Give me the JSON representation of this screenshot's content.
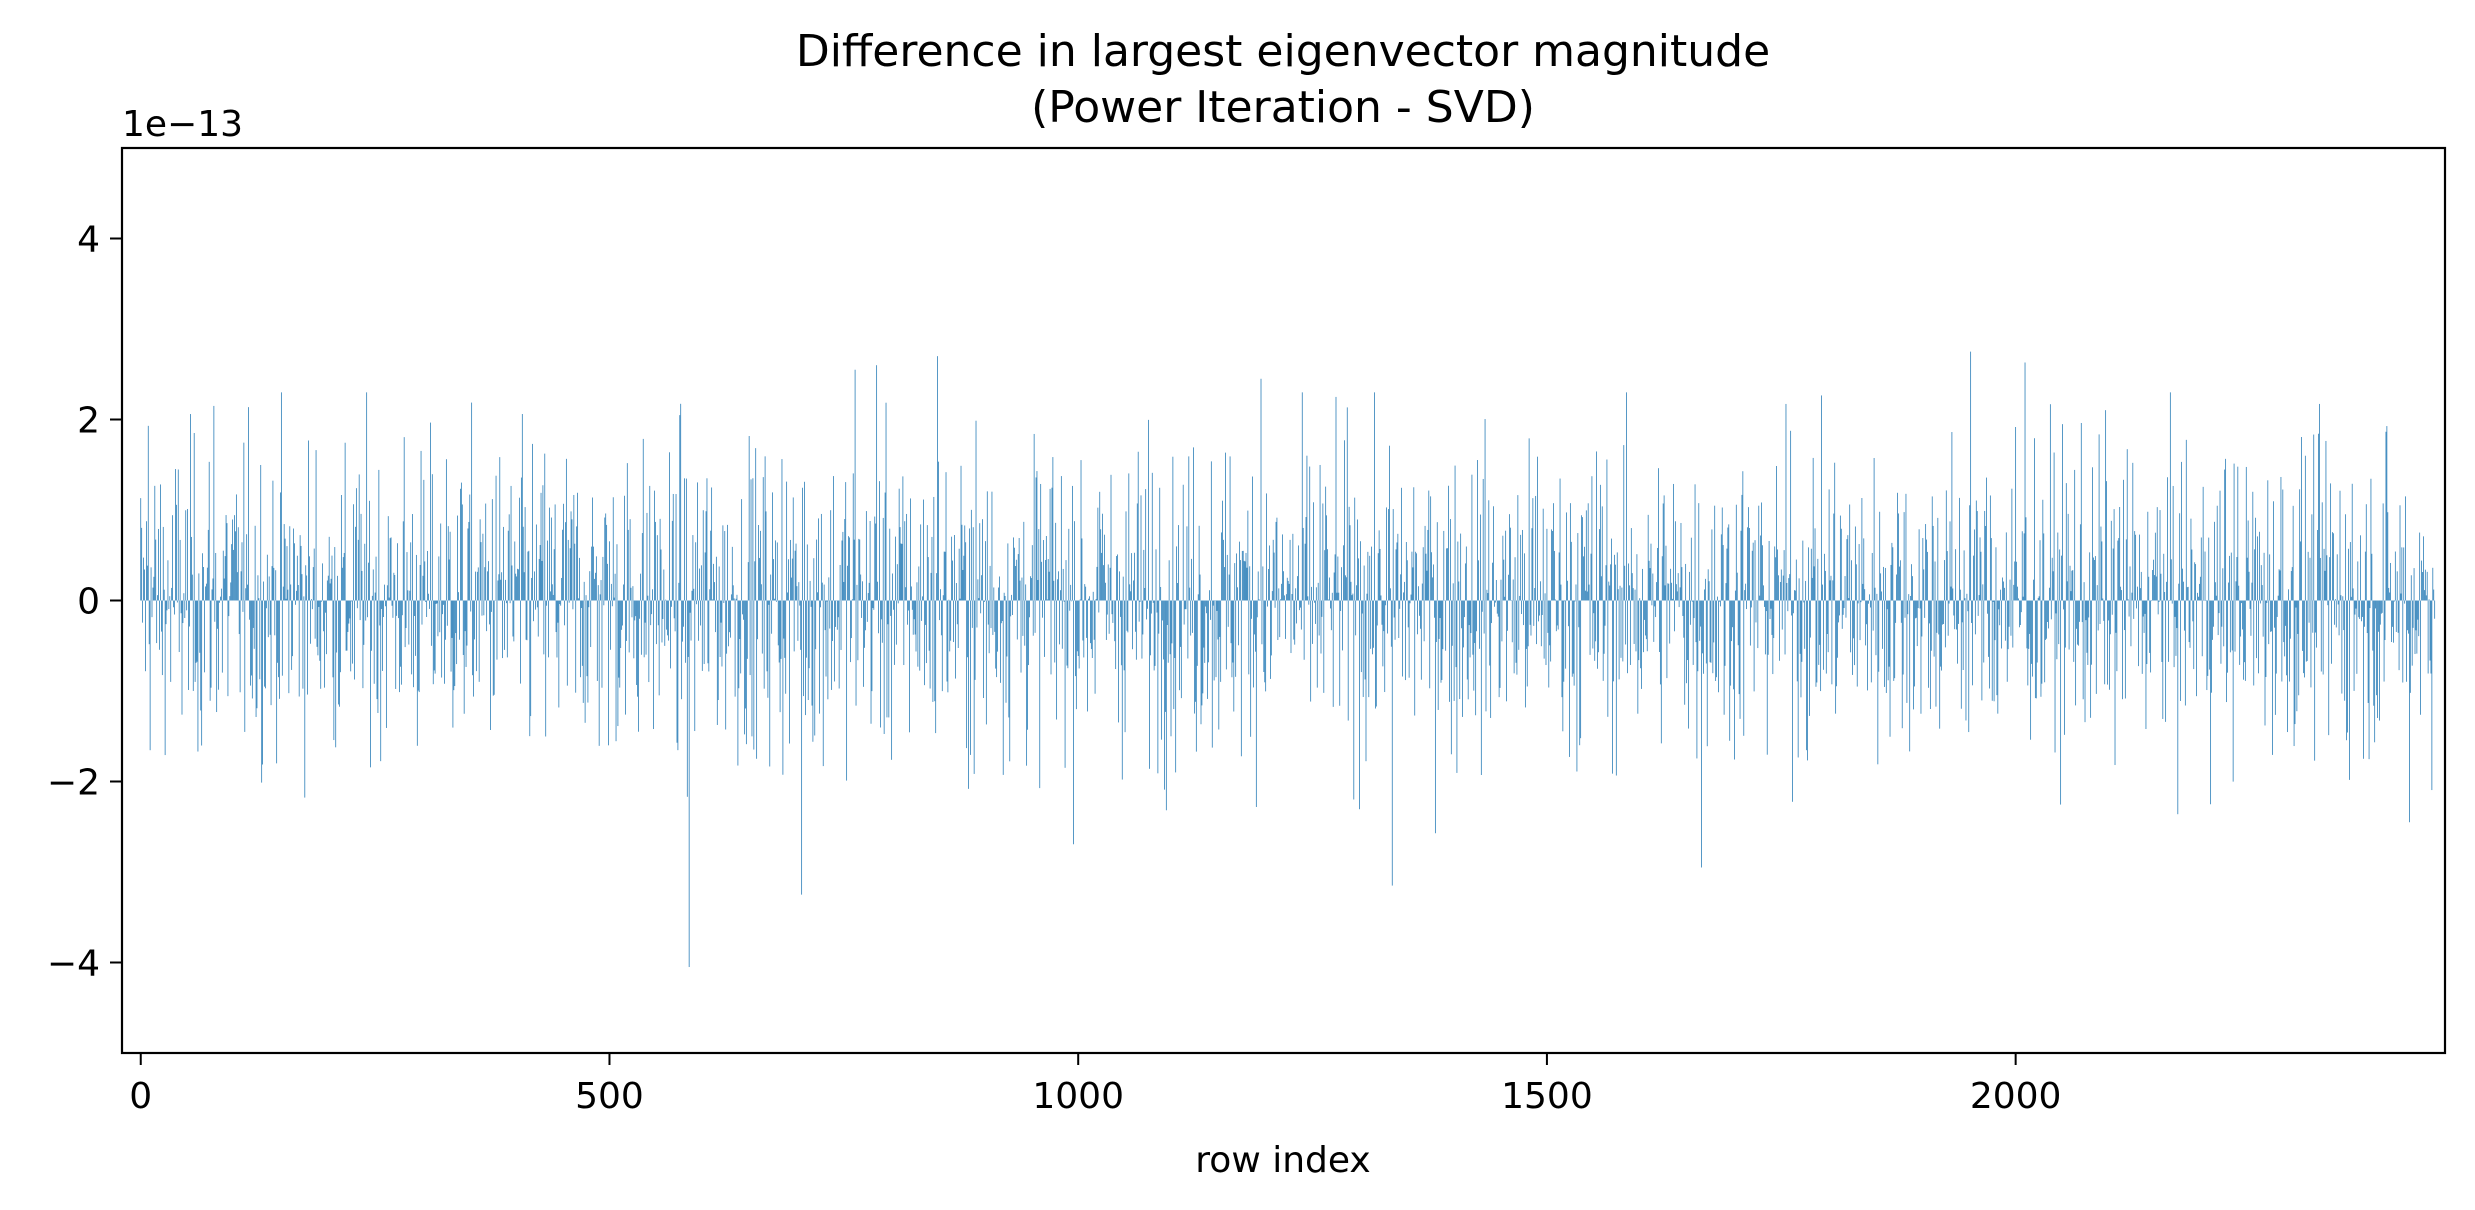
{
  "chart_data": {
    "type": "bar",
    "title_line1": "Difference in largest eigenvector magnitude",
    "title_line2": "(Power Iteration - SVD)",
    "xlabel": "row index",
    "ylabel": "",
    "y_offset_label": "1e−13",
    "xlim": [
      -20,
      2458
    ],
    "ylim": [
      -5,
      5
    ],
    "y_units": "1e-13",
    "x_ticks": [
      0,
      500,
      1000,
      1500,
      2000
    ],
    "x_tick_labels": [
      "0",
      "500",
      "1000",
      "1500",
      "2000"
    ],
    "y_ticks": [
      -4,
      -2,
      0,
      2,
      4
    ],
    "y_tick_labels": [
      "−4",
      "−2",
      "0",
      "2",
      "4"
    ],
    "grid": false,
    "legend": "none",
    "bar_color": "#1f77b4",
    "n_points": 2448,
    "value_distribution": {
      "mean": 0,
      "std": 0.85,
      "clip_min": -4.05,
      "clip_max": 2.75
    },
    "notable_values": [
      {
        "x": 8,
        "value": 1.93
      },
      {
        "x": 78,
        "value": 2.15
      },
      {
        "x": 585,
        "value": -4.05
      },
      {
        "x": 705,
        "value": -3.25
      },
      {
        "x": 762,
        "value": 2.55
      },
      {
        "x": 785,
        "value": 2.6
      },
      {
        "x": 850,
        "value": 2.7
      },
      {
        "x": 1195,
        "value": 2.45
      },
      {
        "x": 1335,
        "value": -3.15
      },
      {
        "x": 1665,
        "value": -2.95
      },
      {
        "x": 1952,
        "value": 2.75
      },
      {
        "x": 2010,
        "value": 2.63
      },
      {
        "x": 2420,
        "value": -2.45
      }
    ]
  }
}
